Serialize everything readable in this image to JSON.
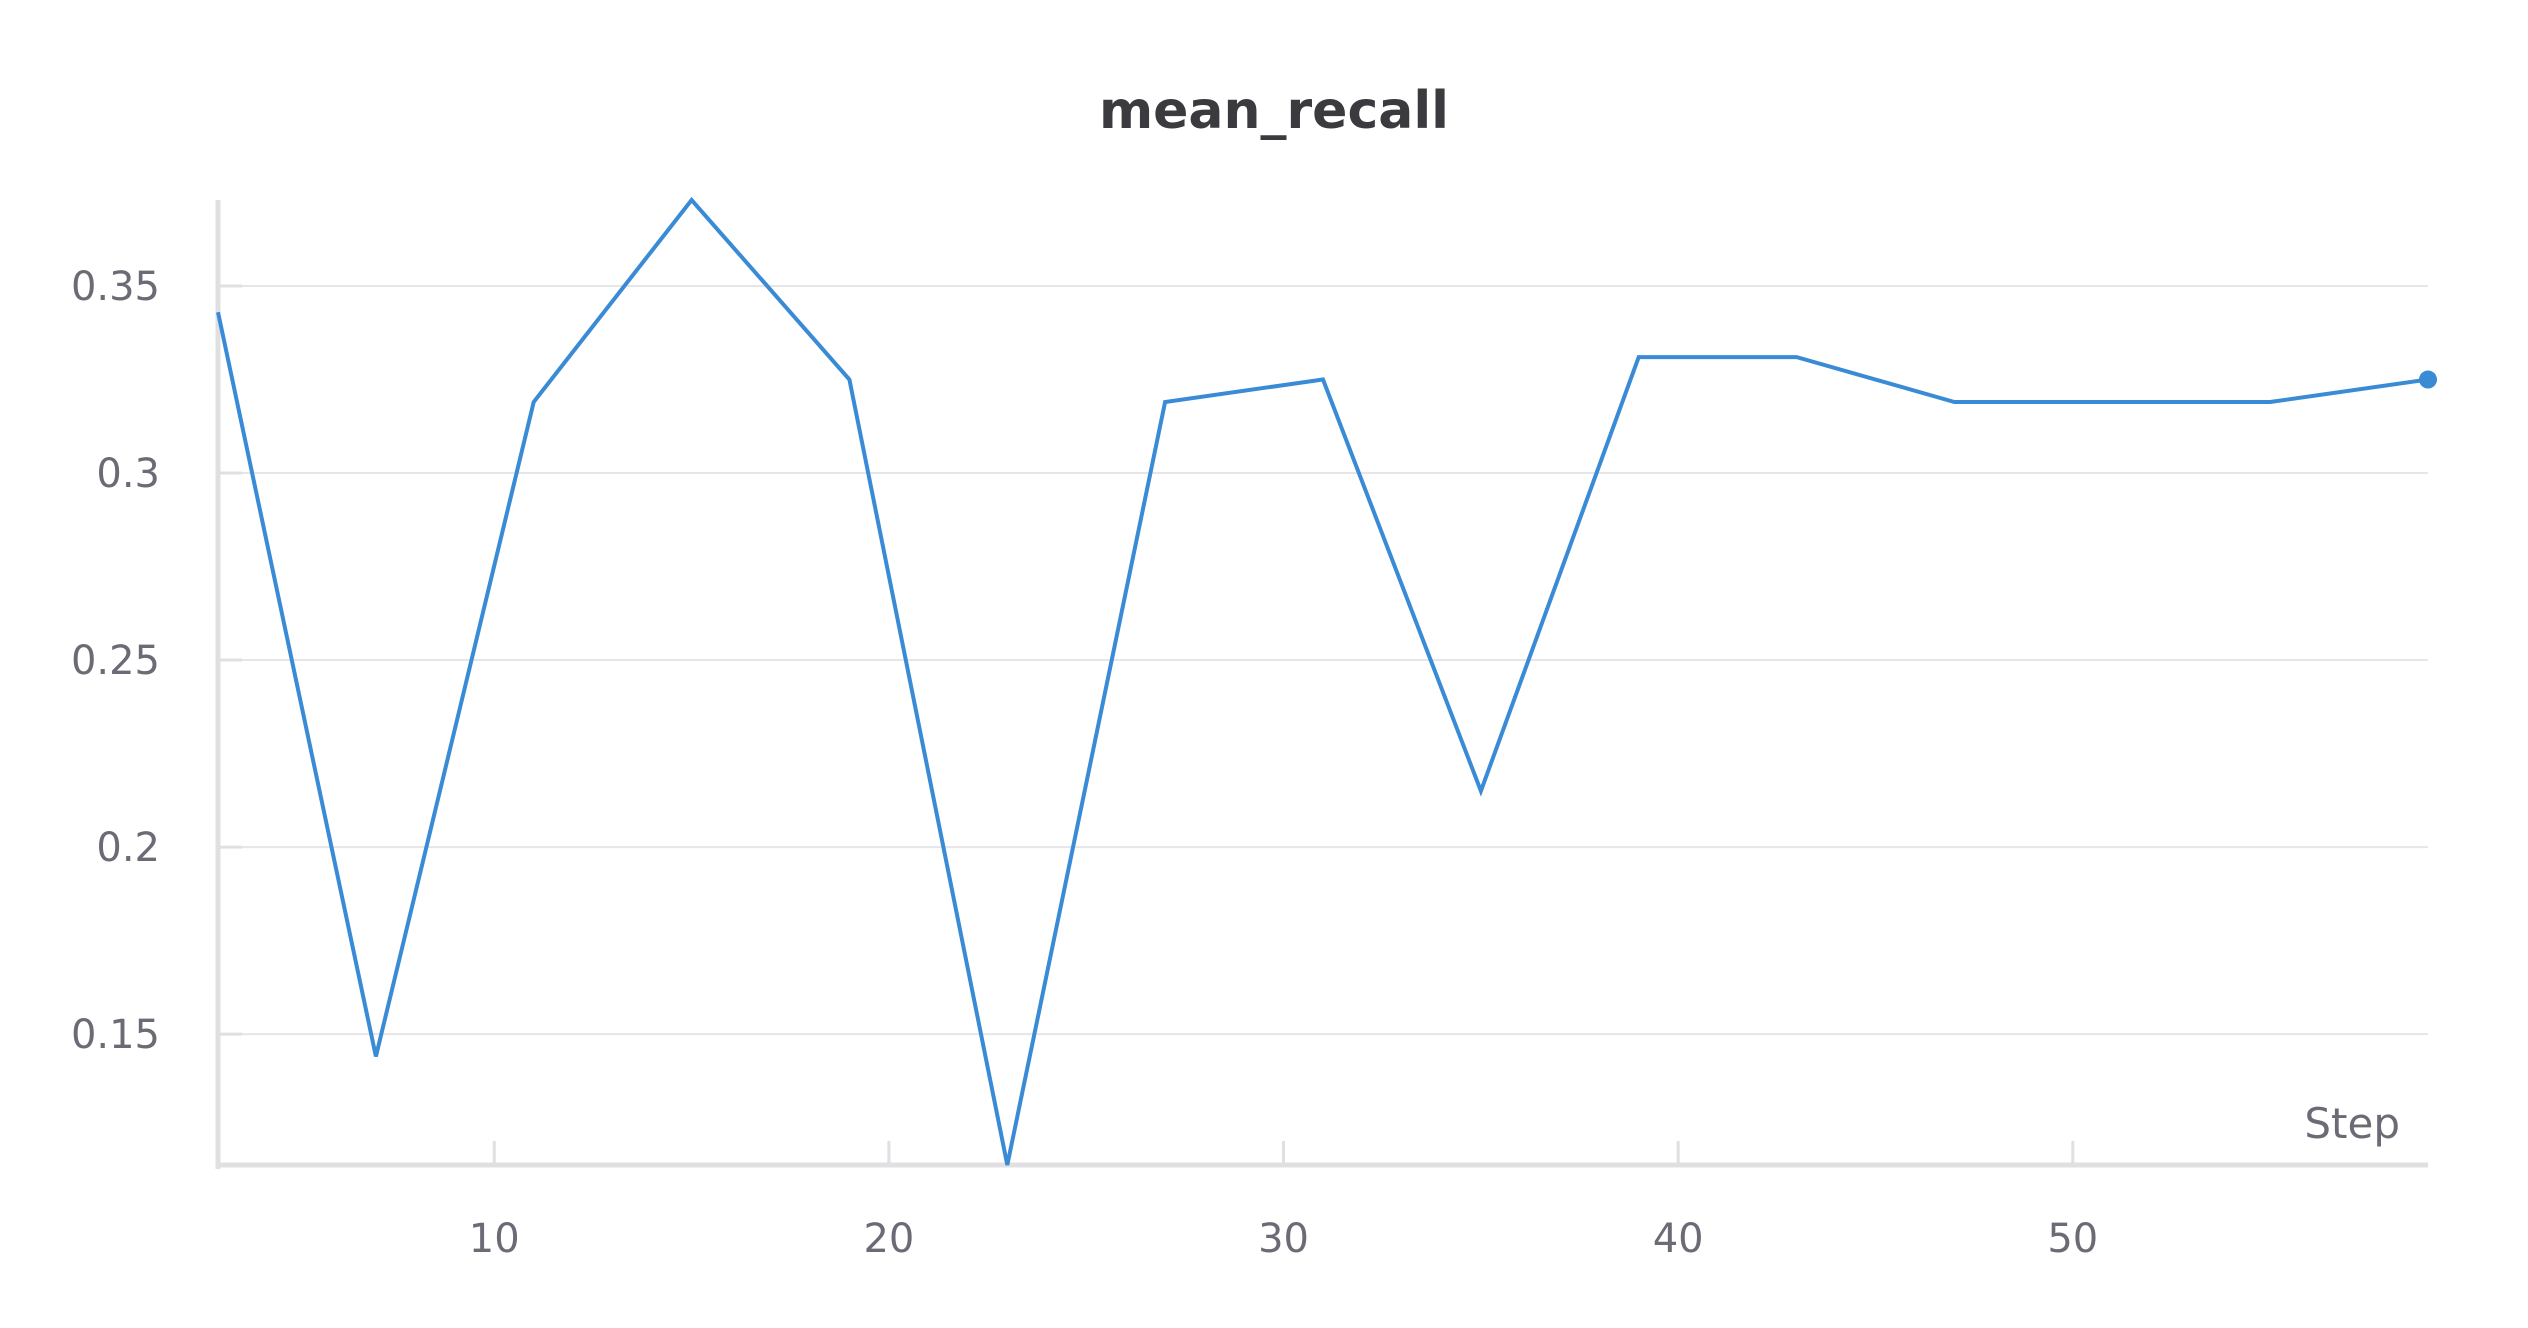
{
  "chart_data": {
    "type": "line",
    "title": "mean_recall",
    "xlabel": "Step",
    "ylabel": "",
    "xlim": [
      3,
      59
    ],
    "ylim": [
      0.115,
      0.373
    ],
    "x_ticks": [
      "10",
      "20",
      "30",
      "40",
      "50"
    ],
    "y_ticks": [
      "0.15",
      "0.2",
      "0.25",
      "0.3",
      "0.35"
    ],
    "grid": true,
    "series_color": "#3a8bd5",
    "series": [
      {
        "x": [
          3,
          7,
          11,
          15,
          19,
          23,
          27,
          31,
          35,
          39,
          43,
          47,
          51,
          55,
          59
        ],
        "y": [
          0.343,
          0.144,
          0.319,
          0.373,
          0.325,
          0.115,
          0.319,
          0.325,
          0.215,
          0.331,
          0.331,
          0.319,
          0.319,
          0.319,
          0.325
        ]
      }
    ]
  }
}
